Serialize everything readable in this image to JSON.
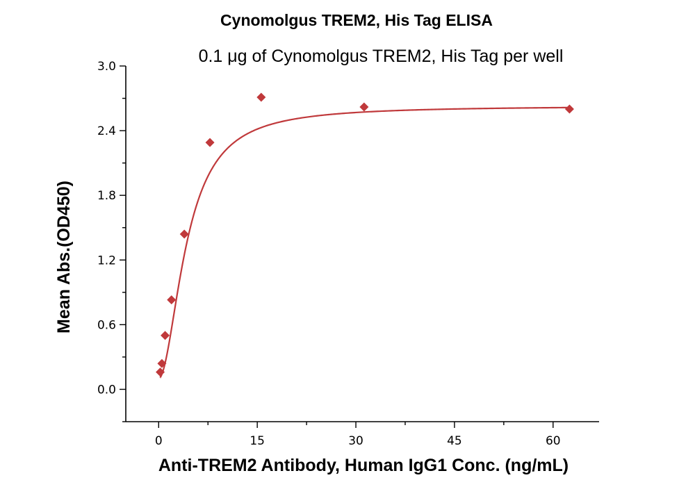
{
  "chart_data": {
    "type": "scatter",
    "title": "Cynomolgus TREM2, His Tag ELISA",
    "subtitle": "0.1 μg of Cynomolgus TREM2, His Tag per well",
    "xlabel": "Anti-TREM2 Antibody, Human IgG1 Conc. (ng/mL)",
    "ylabel": "Mean Abs.(OD450)",
    "xlim": [
      -5,
      67
    ],
    "ylim": [
      -0.3,
      3.0
    ],
    "xticks": [
      0,
      15,
      30,
      45,
      60
    ],
    "xtick_labels": [
      "0",
      "15",
      "30",
      "45",
      "60"
    ],
    "yticks": [
      0.0,
      0.6,
      1.2,
      1.8,
      2.4,
      3.0
    ],
    "ytick_labels": [
      "0.0",
      "0.6",
      "1.2",
      "1.8",
      "2.4",
      "3.0"
    ],
    "grid": false,
    "color": "#c0393b",
    "series": [
      {
        "marker": "diamond",
        "x": [
          0.24,
          0.49,
          0.98,
          1.95,
          3.9,
          7.8,
          15.6,
          31.25,
          62.5
        ],
        "y": [
          0.16,
          0.24,
          0.5,
          0.83,
          1.44,
          2.29,
          2.71,
          2.62,
          2.6
        ]
      }
    ],
    "fit_curve": {
      "type": "4PL",
      "bottom": 0.1,
      "top": 2.63,
      "ec50": 4.3,
      "hill": 1.9
    }
  }
}
